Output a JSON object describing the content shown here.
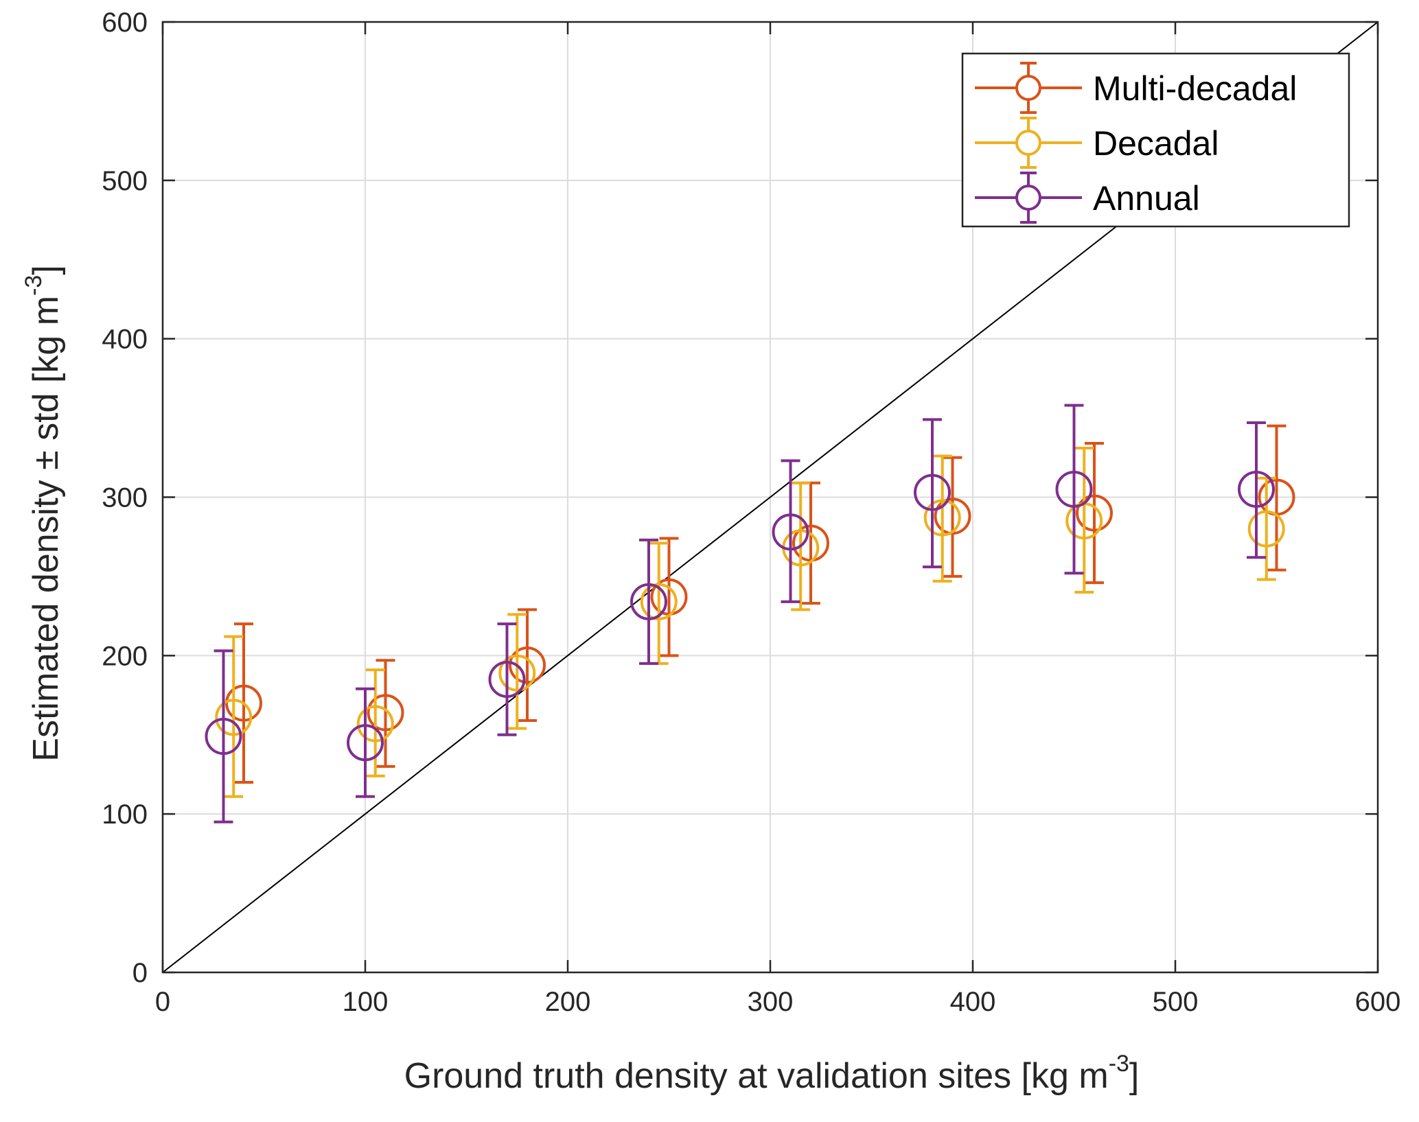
{
  "chart_data": {
    "type": "scatter",
    "title": "",
    "xlabel": "Ground truth density at validation sites [kg m",
    "xlabel_sup": "-3",
    "xlabel_end": "]",
    "ylabel": "Estimated density ± std [kg m",
    "ylabel_sup": "-3",
    "ylabel_end": "]",
    "xlim": [
      0,
      600
    ],
    "ylim": [
      0,
      600
    ],
    "xticks": [
      0,
      100,
      200,
      300,
      400,
      500,
      600
    ],
    "yticks": [
      0,
      100,
      200,
      300,
      400,
      500,
      600
    ],
    "xtick_labels": [
      "0",
      "100",
      "200",
      "300",
      "400",
      "500",
      "600"
    ],
    "ytick_labels": [
      "0",
      "100",
      "200",
      "300",
      "400",
      "500",
      "600"
    ],
    "grid": true,
    "reference_line": {
      "name": "1:1 line",
      "x": [
        0,
        600
      ],
      "y": [
        0,
        600
      ],
      "color": "#000000"
    },
    "legend_position": "top-right",
    "series": [
      {
        "name": "Multi-decadal",
        "color": "#D95319",
        "x": [
          40,
          110,
          180,
          250,
          320,
          390,
          460,
          550
        ],
        "y": [
          170,
          164,
          194,
          237,
          271,
          288,
          290,
          300
        ],
        "yerr_low": [
          120,
          130,
          159,
          200,
          233,
          250,
          246,
          254
        ],
        "yerr_high": [
          220,
          197,
          229,
          274,
          309,
          325,
          334,
          345
        ]
      },
      {
        "name": "Decadal",
        "color": "#EDB120",
        "x": [
          35,
          105,
          175,
          245,
          315,
          385,
          455,
          545
        ],
        "y": [
          161,
          157,
          189,
          234,
          268,
          287,
          285,
          280
        ],
        "yerr_low": [
          111,
          124,
          154,
          195,
          229,
          247,
          240,
          248
        ],
        "yerr_high": [
          212,
          191,
          226,
          271,
          309,
          326,
          331,
          312
        ]
      },
      {
        "name": "Annual",
        "color": "#7E2F8E",
        "x": [
          30,
          100,
          170,
          240,
          310,
          380,
          450,
          540
        ],
        "y": [
          149,
          145,
          185,
          234,
          278,
          303,
          305,
          305
        ],
        "yerr_low": [
          95,
          111,
          150,
          195,
          234,
          256,
          252,
          262
        ],
        "yerr_high": [
          203,
          179,
          220,
          273,
          323,
          349,
          358,
          347
        ]
      }
    ]
  }
}
